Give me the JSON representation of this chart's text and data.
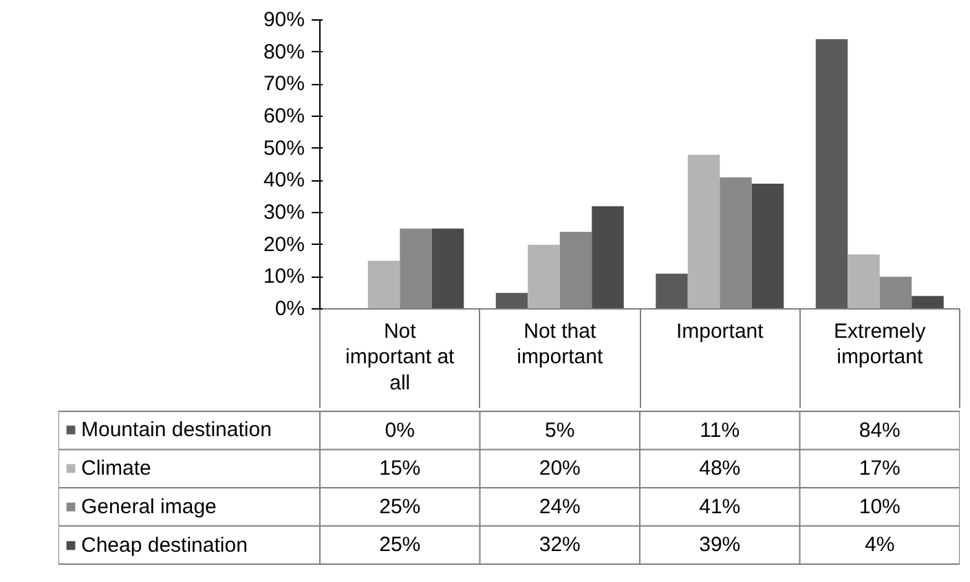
{
  "chart_data": {
    "type": "bar",
    "categories": [
      "Not important at all",
      "Not that important",
      "Important",
      "Extremely important"
    ],
    "series": [
      {
        "name": "Mountain destination",
        "color": "#5a5a5a",
        "values": [
          0,
          5,
          11,
          84
        ],
        "value_labels": [
          "0%",
          "5%",
          "11%",
          "84%"
        ]
      },
      {
        "name": "Climate",
        "color": "#b4b4b4",
        "values": [
          15,
          20,
          48,
          17
        ],
        "value_labels": [
          "15%",
          "20%",
          "48%",
          "17%"
        ]
      },
      {
        "name": "General image",
        "color": "#888888",
        "values": [
          25,
          24,
          41,
          10
        ],
        "value_labels": [
          "25%",
          "24%",
          "41%",
          "10%"
        ]
      },
      {
        "name": "Cheap destination",
        "color": "#4b4b4b",
        "values": [
          25,
          32,
          39,
          4
        ],
        "value_labels": [
          "25%",
          "32%",
          "39%",
          "4%"
        ]
      }
    ],
    "ylim": [
      0,
      90
    ],
    "yticks": [
      {
        "value": 0,
        "label": "0%"
      },
      {
        "value": 10,
        "label": "10%"
      },
      {
        "value": 20,
        "label": "20%"
      },
      {
        "value": 30,
        "label": "30%"
      },
      {
        "value": 40,
        "label": "40%"
      },
      {
        "value": 50,
        "label": "50%"
      },
      {
        "value": 60,
        "label": "60%"
      },
      {
        "value": 70,
        "label": "70%"
      },
      {
        "value": 80,
        "label": "80%"
      },
      {
        "value": 90,
        "label": "90%"
      }
    ],
    "grid": false,
    "legend": "bottom left"
  }
}
